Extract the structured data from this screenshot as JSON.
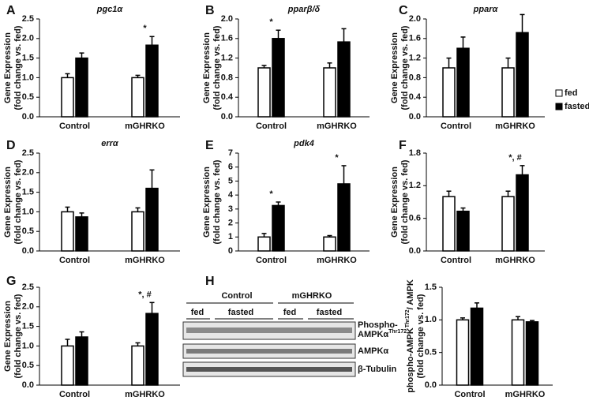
{
  "chart_data": [
    {
      "type": "bar",
      "panel": "A",
      "title": "pgc1α",
      "y_label": [
        [
          "Gene Expression"
        ],
        [
          "(fold change vs. fed)"
        ]
      ],
      "categories": [
        "Control",
        "mGHRKO"
      ],
      "series": [
        {
          "name": "fed",
          "color": "#ffffff",
          "values": [
            1.0,
            1.0
          ],
          "errors": [
            0.1,
            0.06
          ]
        },
        {
          "name": "fasted",
          "color": "#000000",
          "values": [
            1.5,
            1.83
          ],
          "errors": [
            0.13,
            0.22
          ]
        }
      ],
      "ylim": [
        0,
        2.5
      ],
      "yticks": [
        {
          "value": 0,
          "label": "0.0"
        },
        0.5,
        {
          "value": 1,
          "label": "1.0"
        },
        1.5,
        {
          "value": 2,
          "label": "2.0"
        },
        2.5
      ],
      "annotations": [
        {
          "text": "*",
          "category": "mGHRKO"
        }
      ]
    },
    {
      "type": "bar",
      "panel": "B",
      "title": "pparβ/δ",
      "y_label": [
        [
          "Gene Expression"
        ],
        [
          "(fold change vs. fed)"
        ]
      ],
      "categories": [
        "Control",
        "mGHRKO"
      ],
      "series": [
        {
          "name": "fed",
          "color": "#ffffff",
          "values": [
            1.0,
            1.0
          ],
          "errors": [
            0.05,
            0.1
          ]
        },
        {
          "name": "fasted",
          "color": "#000000",
          "values": [
            1.6,
            1.53
          ],
          "errors": [
            0.17,
            0.27
          ]
        }
      ],
      "ylim": [
        0,
        2.0
      ],
      "yticks": [
        {
          "value": 0,
          "label": "0.0"
        },
        0.4,
        0.8,
        1.2,
        1.6,
        {
          "value": 2,
          "label": "2.0"
        }
      ],
      "annotations": [
        {
          "text": "*",
          "category": "Control"
        }
      ]
    },
    {
      "type": "bar",
      "panel": "C",
      "title": "pparα",
      "y_label": [
        [
          "Gene Expression"
        ],
        [
          "(fold change vs. fed)"
        ]
      ],
      "categories": [
        "Control",
        "mGHRKO"
      ],
      "series": [
        {
          "name": "fed",
          "color": "#ffffff",
          "values": [
            1.0,
            1.0
          ],
          "errors": [
            0.2,
            0.2
          ]
        },
        {
          "name": "fasted",
          "color": "#000000",
          "values": [
            1.4,
            1.72
          ],
          "errors": [
            0.23,
            0.37
          ]
        }
      ],
      "ylim": [
        0,
        2.0
      ],
      "yticks": [
        {
          "value": 0,
          "label": "0.0"
        },
        0.4,
        0.8,
        1.2,
        1.6,
        {
          "value": 2,
          "label": "2.0"
        }
      ],
      "legend": "right"
    },
    {
      "type": "bar",
      "panel": "D",
      "title": "errα",
      "y_label": [
        [
          "Gene Expression"
        ],
        [
          "(fold change vs. fed)"
        ]
      ],
      "categories": [
        "Control",
        "mGHRKO"
      ],
      "series": [
        {
          "name": "fed",
          "color": "#ffffff",
          "values": [
            1.0,
            1.0
          ],
          "errors": [
            0.12,
            0.1
          ]
        },
        {
          "name": "fasted",
          "color": "#000000",
          "values": [
            0.87,
            1.6
          ],
          "errors": [
            0.1,
            0.47
          ]
        }
      ],
      "ylim": [
        0,
        2.5
      ],
      "yticks": [
        {
          "value": 0,
          "label": "0.0"
        },
        0.5,
        {
          "value": 1,
          "label": "1.0"
        },
        1.5,
        {
          "value": 2,
          "label": "2.0"
        },
        2.5
      ]
    },
    {
      "type": "bar",
      "panel": "E",
      "title": "pdk4",
      "y_label": [
        [
          "Gene Expression"
        ],
        [
          "(fold change vs. fed)"
        ]
      ],
      "categories": [
        "Control",
        "mGHRKO"
      ],
      "series": [
        {
          "name": "fed",
          "color": "#ffffff",
          "values": [
            1.0,
            1.0
          ],
          "errors": [
            0.25,
            0.1
          ]
        },
        {
          "name": "fasted",
          "color": "#000000",
          "values": [
            3.25,
            4.8
          ],
          "errors": [
            0.25,
            1.3
          ]
        }
      ],
      "ylim": [
        0,
        7
      ],
      "yticks": [
        0,
        1,
        2,
        3,
        4,
        5,
        6,
        7
      ],
      "annotations": [
        {
          "text": "*",
          "category": "Control"
        },
        {
          "text": "*",
          "category": "mGHRKO"
        }
      ]
    },
    {
      "type": "bar",
      "panel": "F",
      "y_label": [
        [
          "Gene Expression"
        ],
        [
          "(fold change vs. fed)"
        ]
      ],
      "categories": [
        "Control",
        "mGHRKO"
      ],
      "series": [
        {
          "name": "fed",
          "color": "#ffffff",
          "values": [
            1.0,
            1.0
          ],
          "errors": [
            0.1,
            0.1
          ]
        },
        {
          "name": "fasted",
          "color": "#000000",
          "values": [
            0.73,
            1.4
          ],
          "errors": [
            0.06,
            0.17
          ]
        }
      ],
      "ylim": [
        0,
        1.8
      ],
      "yticks": [
        {
          "value": 0,
          "label": "0.0"
        },
        0.6,
        1.2,
        1.8
      ],
      "annotations": [
        {
          "text": "*, #",
          "category": "mGHRKO"
        }
      ]
    },
    {
      "type": "bar",
      "panel": "G",
      "y_label": [
        [
          "Gene Expression"
        ],
        [
          "(fold change vs. fed)"
        ]
      ],
      "categories": [
        "Control",
        "mGHRKO"
      ],
      "series": [
        {
          "name": "fed",
          "color": "#ffffff",
          "values": [
            1.0,
            1.0
          ],
          "errors": [
            0.17,
            0.08
          ]
        },
        {
          "name": "fasted",
          "color": "#000000",
          "values": [
            1.23,
            1.83
          ],
          "errors": [
            0.13,
            0.28
          ]
        }
      ],
      "ylim": [
        0,
        2.5
      ],
      "yticks": [
        {
          "value": 0,
          "label": "0.0"
        },
        0.5,
        {
          "value": 1,
          "label": "1.0"
        },
        1.5,
        {
          "value": 2,
          "label": "2.0"
        },
        2.5
      ],
      "annotations": [
        {
          "text": "*, #",
          "category": "mGHRKO"
        }
      ]
    },
    {
      "type": "bar",
      "panel": "H",
      "y_label": [
        [
          "phospho-AMPK",
          {
            "sup": "Thr172"
          },
          "/ AMPK"
        ],
        [
          "(fold change vs. fed)"
        ]
      ],
      "categories": [
        "Control",
        "mGHRKO"
      ],
      "series": [
        {
          "name": "fed",
          "color": "#ffffff",
          "values": [
            1.0,
            1.0
          ],
          "errors": [
            0.03,
            0.05
          ]
        },
        {
          "name": "fasted",
          "color": "#000000",
          "values": [
            1.18,
            0.97
          ],
          "errors": [
            0.08,
            0.02
          ]
        }
      ],
      "ylim": [
        0,
        1.5
      ],
      "yticks": [
        {
          "value": 0,
          "label": "0.0"
        },
        0.5,
        {
          "value": 1,
          "label": "1.0"
        },
        1.5
      ]
    }
  ],
  "blot": {
    "groups": [
      "Control",
      "mGHRKO"
    ],
    "conditions": [
      "fed",
      "fasted",
      "fed",
      "fasted"
    ],
    "rows": [
      {
        "text": "Phospho-",
        "text2": "AMPKα",
        "sup": "Thr172"
      },
      {
        "text": "AMPKα"
      },
      {
        "text": "β-Tubulin"
      }
    ]
  }
}
